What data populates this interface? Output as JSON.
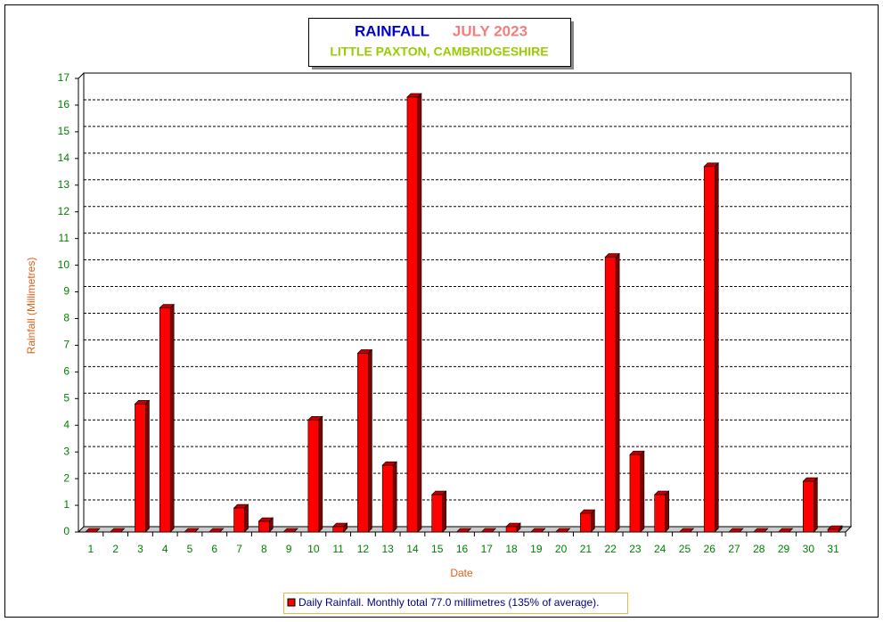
{
  "chart_data": {
    "type": "bar",
    "title": "RAINFALL",
    "period": "JULY 2023",
    "subtitle": "LITTLE PAXTON, CAMBRIDGESHIRE",
    "x_label": "Date",
    "y_label": "Rainfall  (Millimetres)",
    "categories": [
      "1",
      "2",
      "3",
      "4",
      "5",
      "6",
      "7",
      "8",
      "9",
      "10",
      "11",
      "12",
      "13",
      "14",
      "15",
      "16",
      "17",
      "18",
      "19",
      "20",
      "21",
      "22",
      "23",
      "24",
      "25",
      "26",
      "27",
      "28",
      "29",
      "30",
      "31"
    ],
    "series": [
      {
        "name": "Daily Rainfall. Monthly total 77.0 millimetres (135% of average).",
        "color": "#ff0000",
        "values": [
          0,
          0,
          4.8,
          8.4,
          0,
          0,
          0.9,
          0.4,
          0,
          4.2,
          0.2,
          6.7,
          2.5,
          16.3,
          1.4,
          0,
          0,
          0.2,
          0,
          0,
          0.7,
          10.3,
          2.9,
          1.4,
          0,
          13.7,
          0,
          0,
          0,
          1.9,
          0.1
        ]
      }
    ],
    "ylim": [
      0,
      17
    ],
    "yticks": [
      0,
      1,
      2,
      3,
      4,
      5,
      6,
      7,
      8,
      9,
      10,
      11,
      12,
      13,
      14,
      15,
      16,
      17
    ],
    "grid": true
  }
}
